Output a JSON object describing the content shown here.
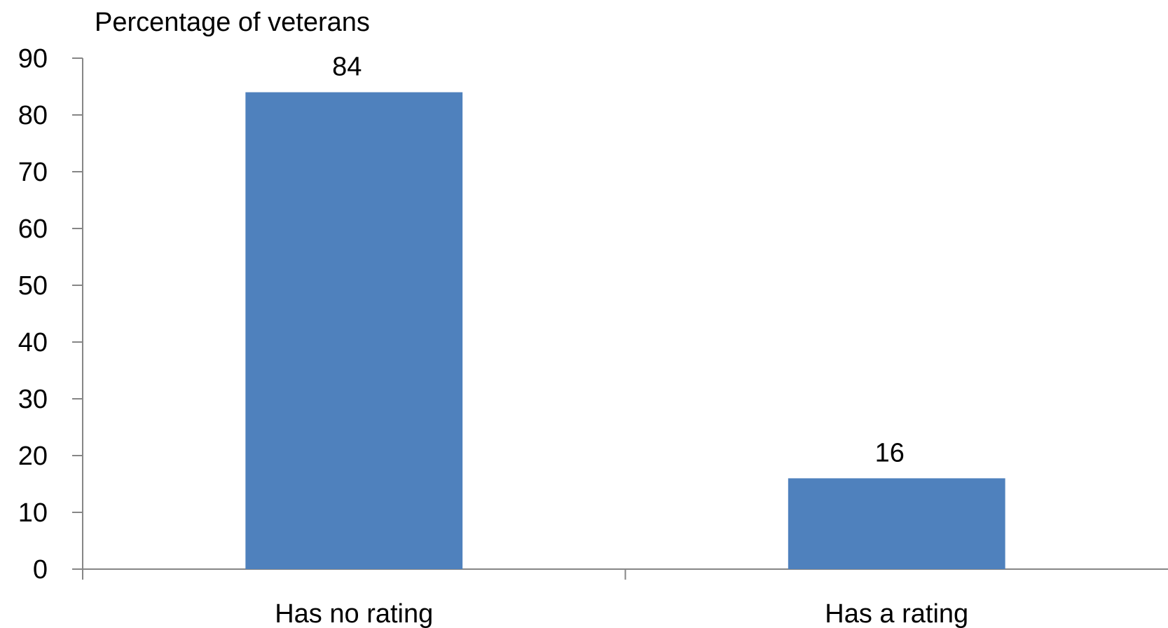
{
  "chart_data": {
    "type": "bar",
    "title": "",
    "ylabel": "Percentage of veterans",
    "xlabel": "",
    "categories": [
      "Has no rating",
      "Has a rating"
    ],
    "values": [
      84,
      16
    ],
    "data_labels": [
      "84",
      "16"
    ],
    "ylim": [
      0,
      90
    ],
    "yticks": [
      0,
      10,
      20,
      30,
      40,
      50,
      60,
      70,
      80,
      90
    ],
    "ytick_labels": [
      "0",
      "10",
      "20",
      "30",
      "40",
      "50",
      "60",
      "70",
      "80",
      "90"
    ],
    "grid": false,
    "legend": "none",
    "colors": {
      "bar": "#4f81bd",
      "axis": "#868686",
      "text": "#000000"
    }
  }
}
